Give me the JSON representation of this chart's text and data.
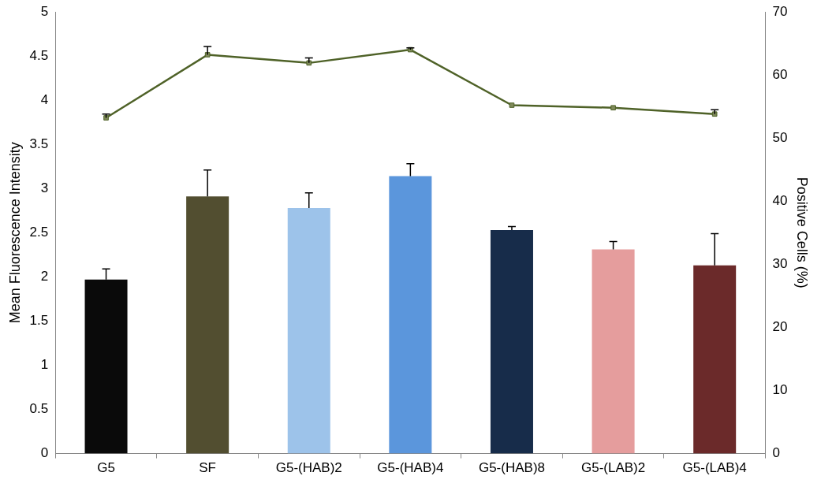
{
  "chart_data": {
    "type": "bar",
    "ylabel": "Mean Fluorescence Intensity",
    "y2label": "Positive Cells (%)",
    "categories": [
      "G5",
      "SF",
      "G5-(HAB)2",
      "G5-(HAB)4",
      "G5-(HAB)8",
      "G5-(LAB)2",
      "G5-(LAB)4"
    ],
    "series": [
      {
        "colors": [
          "#0a0a0a",
          "#524e30",
          "#9dc3ea",
          "#5b96dc",
          "#172c4a",
          "#e59d9d",
          "#6b2a2a"
        ],
        "values": [
          1.97,
          2.91,
          2.78,
          3.14,
          2.53,
          2.31,
          2.13
        ],
        "errors": [
          [
            1.97,
            2.09
          ],
          [
            2.91,
            3.21
          ],
          [
            2.78,
            2.95
          ],
          [
            3.14,
            3.28
          ],
          [
            2.53,
            2.57
          ],
          [
            2.31,
            2.4
          ],
          [
            2.13,
            2.49
          ]
        ]
      },
      {
        "type": "line",
        "axis": "y2",
        "color": "#4f6228",
        "marker": "square",
        "values": [
          53.2,
          63.2,
          61.9,
          64.0,
          55.2,
          54.8,
          53.8
        ],
        "errors": [
          [
            53.2,
            53.8
          ],
          [
            63.2,
            64.5
          ],
          [
            61.9,
            62.7
          ],
          [
            64.0,
            64.3
          ],
          null,
          null,
          [
            53.8,
            54.5
          ]
        ]
      }
    ],
    "ylim": [
      0,
      5
    ],
    "yticks": [
      0,
      0.5,
      1,
      1.5,
      2,
      2.5,
      3,
      3.5,
      4,
      4.5,
      5
    ],
    "y2lim": [
      0,
      70
    ],
    "y2ticks": [
      0,
      10,
      20,
      30,
      40,
      50,
      60,
      70
    ],
    "grid": false,
    "legend": false
  }
}
